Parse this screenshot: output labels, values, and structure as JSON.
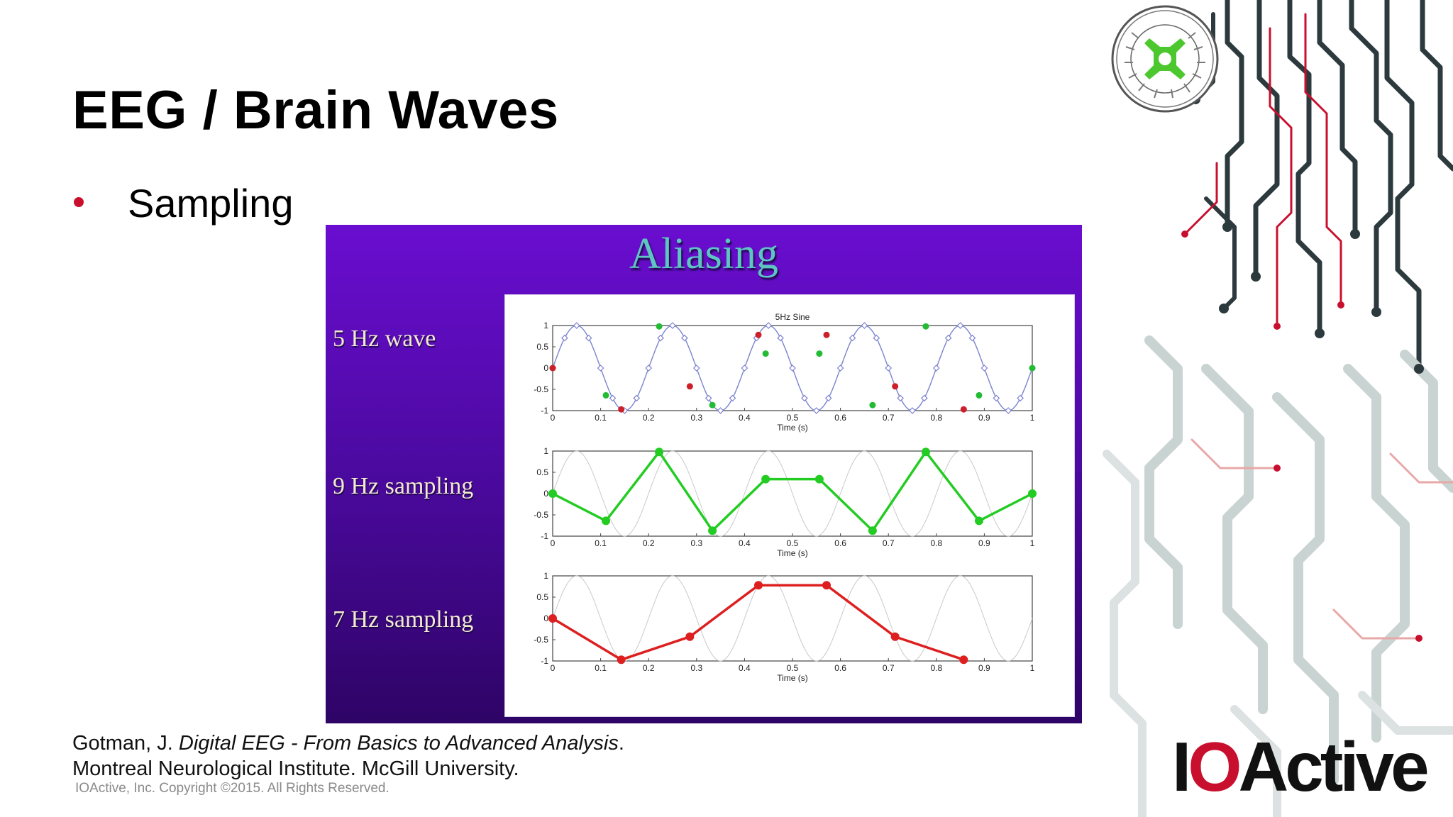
{
  "slide": {
    "title": "EEG / Brain Waves",
    "bullet": "Sampling",
    "citation_line1_pre": "Gotman, J. ",
    "citation_line1_italic": "Digital EEG - From Basics to Advanced Analysis",
    "citation_line1_post": ".",
    "citation_line2": "Montreal Neurological Institute. McGill University.",
    "copyright": "IOActive, Inc. Copyright ©2015.  All Rights Reserved.",
    "logo_text_1": "I",
    "logo_text_2": "O",
    "logo_text_3": "Active",
    "bullet_color": "#c8102e",
    "logo_accent_color": "#c8102e"
  },
  "figure": {
    "heading": "Aliasing",
    "row_labels": [
      "5 Hz wave",
      "9 Hz sampling",
      "7 Hz sampling"
    ],
    "background_colors": [
      "#6a0dd0",
      "#2e0466"
    ]
  },
  "chart_data": [
    {
      "type": "line",
      "title": "5Hz Sine",
      "xlabel": "Time (s)",
      "ylabel": "",
      "xlim": [
        0,
        1
      ],
      "ylim": [
        -1,
        1
      ],
      "xticks": [
        "0",
        "0.1",
        "0.2",
        "0.3",
        "0.4",
        "0.5",
        "0.6",
        "0.7",
        "0.8",
        "0.9",
        "1"
      ],
      "yticks": [
        "1",
        "0.5",
        "0",
        "-0.5",
        "-1"
      ],
      "series": [
        {
          "kind": "line",
          "color": "#7c83cf",
          "function": "sin(2*pi*5*t)",
          "marker": "open-diamond",
          "sample_rate_hz": 40
        },
        {
          "kind": "points",
          "color": "#22bb33",
          "x": [
            0,
            0.111,
            0.222,
            0.333,
            0.444,
            0.556,
            0.667,
            0.778,
            0.889,
            1.0
          ],
          "y": [
            0,
            -0.64,
            0.98,
            -0.87,
            0.34,
            0.34,
            -0.87,
            0.98,
            -0.64,
            0
          ]
        },
        {
          "kind": "points",
          "color": "#cc1f2a",
          "x": [
            0,
            0.143,
            0.286,
            0.429,
            0.571,
            0.714,
            0.857
          ],
          "y": [
            0,
            -0.97,
            -0.43,
            0.78,
            0.78,
            -0.43,
            -0.97
          ]
        }
      ]
    },
    {
      "type": "line",
      "title": "",
      "xlabel": "Time (s)",
      "ylabel": "",
      "xlim": [
        0,
        1
      ],
      "ylim": [
        -1,
        1
      ],
      "xticks": [
        "0",
        "0.1",
        "0.2",
        "0.3",
        "0.4",
        "0.5",
        "0.6",
        "0.7",
        "0.8",
        "0.9",
        "1"
      ],
      "yticks": [
        "1",
        "0.5",
        "0",
        "-0.5",
        "-1"
      ],
      "series": [
        {
          "kind": "faint",
          "color": "#c9c9c9",
          "function": "sin(2*pi*5*t)"
        },
        {
          "kind": "line",
          "color": "#22cc22",
          "x": [
            0,
            0.111,
            0.222,
            0.333,
            0.444,
            0.556,
            0.667,
            0.778,
            0.889,
            1.0
          ],
          "y": [
            0,
            -0.64,
            0.98,
            -0.87,
            0.34,
            0.34,
            -0.87,
            0.98,
            -0.64,
            0
          ]
        }
      ]
    },
    {
      "type": "line",
      "title": "",
      "xlabel": "Time (s)",
      "ylabel": "",
      "xlim": [
        0,
        1
      ],
      "ylim": [
        -1,
        1
      ],
      "xticks": [
        "0",
        "0.1",
        "0.2",
        "0.3",
        "0.4",
        "0.5",
        "0.6",
        "0.7",
        "0.8",
        "0.9",
        "1"
      ],
      "yticks": [
        "1",
        "0.5",
        "0",
        "-0.5",
        "-1"
      ],
      "series": [
        {
          "kind": "faint",
          "color": "#c9c9c9",
          "function": "sin(2*pi*5*t)"
        },
        {
          "kind": "line",
          "color": "#dd1f1f",
          "x": [
            0,
            0.143,
            0.286,
            0.429,
            0.571,
            0.714,
            0.857
          ],
          "y": [
            0,
            -0.97,
            -0.43,
            0.78,
            0.78,
            -0.43,
            -0.97
          ]
        }
      ]
    }
  ]
}
